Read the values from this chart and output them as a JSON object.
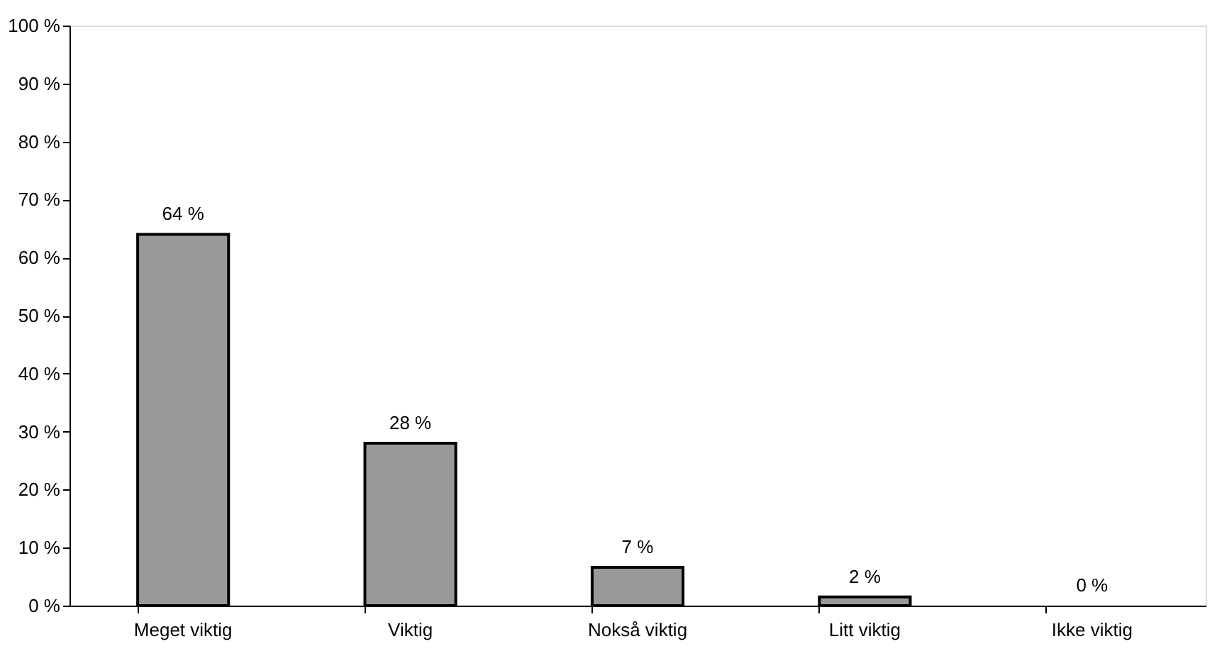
{
  "chart_data": {
    "type": "bar",
    "categories": [
      "Meget viktig",
      "Viktig",
      "Nokså viktig",
      "Litt viktig",
      "Ikke viktig"
    ],
    "values": [
      64,
      28,
      6.6,
      1.5,
      0
    ],
    "value_labels": [
      "64 %",
      "28 %",
      "7 %",
      "2 %",
      "0 %"
    ],
    "color": "#999999",
    "ylim": [
      0,
      100
    ],
    "yticks": [
      {
        "value": 0,
        "label": "0 %"
      },
      {
        "value": 10,
        "label": "10 %"
      },
      {
        "value": 20,
        "label": "20 %"
      },
      {
        "value": 30,
        "label": "30 %"
      },
      {
        "value": 40,
        "label": "40 %"
      },
      {
        "value": 50,
        "label": "50 %"
      },
      {
        "value": 60,
        "label": "60 %"
      },
      {
        "value": 70,
        "label": "70 %"
      },
      {
        "value": 80,
        "label": "80 %"
      },
      {
        "value": 90,
        "label": "90 %"
      },
      {
        "value": 100,
        "label": "100 %"
      }
    ],
    "grid": false
  }
}
